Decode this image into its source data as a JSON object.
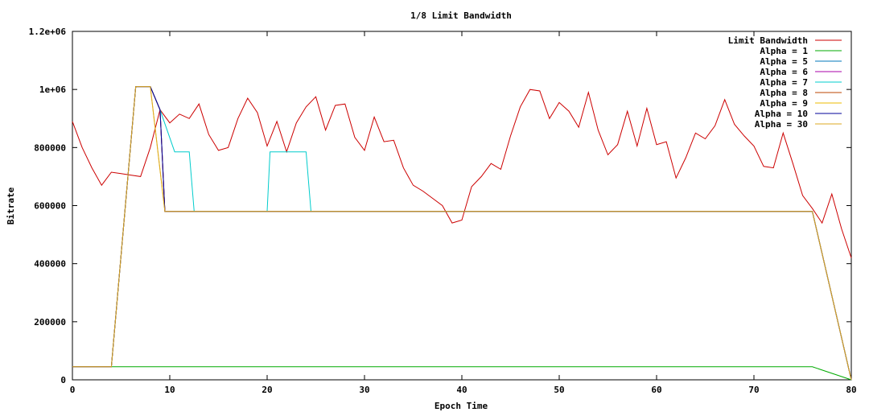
{
  "chart_data": {
    "type": "line",
    "title": "1/8 Limit Bandwidth",
    "xlabel": "Epoch Time",
    "ylabel": "Bitrate",
    "xlim": [
      0,
      80
    ],
    "ylim": [
      0,
      1200000
    ],
    "xticks": [
      0,
      10,
      20,
      30,
      40,
      50,
      60,
      70,
      80
    ],
    "yticks": [
      0,
      200000,
      400000,
      600000,
      800000,
      1000000,
      1200000
    ],
    "ytick_labels": [
      "0",
      "200000",
      "400000",
      "600000",
      "800000",
      "1e+06",
      "1.2e+06"
    ],
    "grid": false,
    "legend_position": "top-right",
    "series": [
      {
        "name": "Limit Bandwidth",
        "color": "#cc0000",
        "x": [
          0,
          1,
          2,
          3,
          4,
          5,
          6,
          7,
          8,
          9,
          10,
          11,
          12,
          13,
          14,
          15,
          16,
          17,
          18,
          19,
          20,
          21,
          22,
          23,
          24,
          25,
          26,
          27,
          28,
          29,
          30,
          31,
          32,
          33,
          34,
          35,
          36,
          37,
          38,
          39,
          40,
          41,
          42,
          43,
          44,
          45,
          46,
          47,
          48,
          49,
          50,
          51,
          52,
          53,
          54,
          55,
          56,
          57,
          58,
          59,
          60,
          61,
          62,
          63,
          64,
          65,
          66,
          67,
          68,
          69,
          70,
          71,
          72,
          73,
          74,
          75,
          76,
          77,
          78,
          79,
          80
        ],
        "y": [
          890000,
          800000,
          730000,
          670000,
          715000,
          710000,
          705000,
          700000,
          800000,
          930000,
          885000,
          915000,
          900000,
          950000,
          845000,
          790000,
          800000,
          900000,
          970000,
          920000,
          805000,
          890000,
          785000,
          885000,
          940000,
          975000,
          860000,
          945000,
          950000,
          835000,
          790000,
          905000,
          820000,
          825000,
          730000,
          670000,
          650000,
          625000,
          600000,
          540000,
          550000,
          665000,
          700000,
          745000,
          725000,
          840000,
          940000,
          1000000,
          995000,
          900000,
          955000,
          925000,
          870000,
          990000,
          860000,
          775000,
          810000,
          925000,
          805000,
          935000,
          810000,
          820000,
          695000,
          765000,
          850000,
          830000,
          875000,
          965000,
          880000,
          840000,
          805000,
          735000,
          730000,
          850000,
          745000,
          635000,
          590000,
          540000,
          640000,
          520000,
          420000
        ]
      },
      {
        "name": "Alpha = 1",
        "color": "#00aa00",
        "x": [
          0,
          4,
          76,
          80
        ],
        "y": [
          45000,
          45000,
          45000,
          0
        ]
      },
      {
        "name": "Alpha = 5",
        "color": "#0077bb",
        "x": [
          0,
          4,
          6.5,
          8,
          9,
          9.5,
          76,
          80
        ],
        "y": [
          45000,
          45000,
          1010000,
          1010000,
          930000,
          580000,
          580000,
          0
        ]
      },
      {
        "name": "Alpha = 6",
        "color": "#aa00aa",
        "x": [
          0,
          4,
          6.5,
          8,
          9,
          9.5,
          76,
          80
        ],
        "y": [
          45000,
          45000,
          1010000,
          1010000,
          930000,
          580000,
          580000,
          0
        ]
      },
      {
        "name": "Alpha = 7",
        "color": "#00cccc",
        "x": [
          0,
          4,
          6.5,
          8,
          9,
          10.5,
          12,
          12.5,
          20,
          20.3,
          24,
          24.5,
          76,
          80
        ],
        "y": [
          45000,
          45000,
          1010000,
          1010000,
          930000,
          785000,
          785000,
          580000,
          580000,
          785000,
          785000,
          580000,
          580000,
          0
        ]
      },
      {
        "name": "Alpha = 8",
        "color": "#bb4400",
        "x": [
          0,
          4,
          6.5,
          8,
          9,
          9.5,
          76,
          80
        ],
        "y": [
          45000,
          45000,
          1010000,
          1010000,
          930000,
          580000,
          580000,
          0
        ]
      },
      {
        "name": "Alpha = 9",
        "color": "#eebb00",
        "x": [
          0,
          4,
          6.5,
          8,
          9.5,
          76,
          80
        ],
        "y": [
          45000,
          45000,
          1010000,
          1010000,
          580000,
          580000,
          0
        ]
      },
      {
        "name": "Alpha = 10",
        "color": "#000099",
        "x": [
          0,
          4,
          6.5,
          8,
          9,
          9.5,
          76,
          80
        ],
        "y": [
          45000,
          45000,
          1010000,
          1010000,
          930000,
          580000,
          580000,
          0
        ]
      },
      {
        "name": "Alpha = 30",
        "color": "#ddaa22",
        "x": [
          0,
          4,
          6.5,
          8,
          9.5,
          76,
          80
        ],
        "y": [
          45000,
          45000,
          1010000,
          1010000,
          580000,
          580000,
          0
        ]
      }
    ]
  }
}
